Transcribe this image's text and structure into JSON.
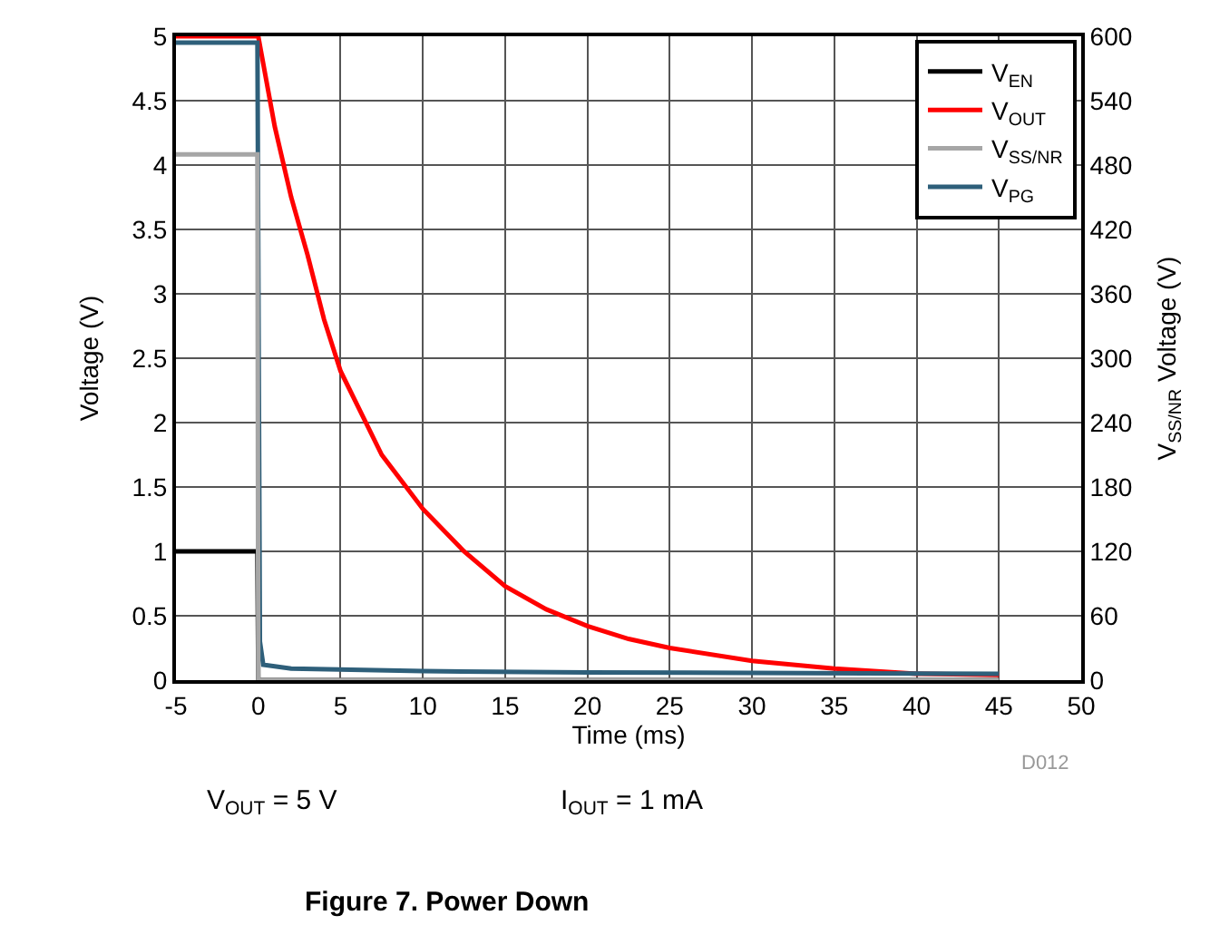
{
  "chart_data": {
    "type": "line",
    "title": "Figure 7. Power Down",
    "xlabel": "Time (ms)",
    "ylabel": "Voltage (V)",
    "y2label": "V$_{SS/NR}$ Voltage (V)",
    "series": [
      {
        "name": "V$_{EN}$",
        "color": "#000000",
        "x": [
          -5,
          -0.05,
          0,
          0.3,
          45
        ],
        "values": [
          1.0,
          1.0,
          0,
          0,
          0
        ]
      },
      {
        "name": "V$_{OUT}$",
        "color": "#ff0000",
        "x": [
          -5,
          0,
          1,
          2,
          3,
          4,
          5,
          7.5,
          10,
          12.5,
          15,
          17.5,
          20,
          22.5,
          25,
          30,
          35,
          40,
          45
        ],
        "values": [
          5.0,
          5.0,
          4.3,
          3.75,
          3.3,
          2.8,
          2.4,
          1.75,
          1.33,
          1.0,
          0.73,
          0.55,
          0.42,
          0.32,
          0.25,
          0.15,
          0.09,
          0.05,
          0.04
        ]
      },
      {
        "name": "V$_{SS/NR}$",
        "color": "#a6a6a6",
        "axis": "y2",
        "x": [
          -5,
          -0.05,
          0,
          0.3,
          45
        ],
        "values": [
          490,
          490,
          0,
          0,
          0
        ]
      },
      {
        "name": "V$_{PG}$",
        "color": "#2e5f7a",
        "x": [
          -5,
          -0.05,
          0.1,
          0.3,
          2,
          10,
          20,
          45
        ],
        "values": [
          4.95,
          4.95,
          0.3,
          0.12,
          0.09,
          0.07,
          0.06,
          0.05
        ]
      }
    ],
    "xlim": [
      -5,
      50
    ],
    "xticks": [
      -5,
      0,
      5,
      10,
      15,
      20,
      25,
      30,
      35,
      40,
      45,
      50
    ],
    "ylim": [
      0,
      5
    ],
    "yticks": [
      0,
      0.5,
      1,
      1.5,
      2,
      2.5,
      3,
      3.5,
      4,
      4.5,
      5
    ],
    "y2lim": [
      0,
      600
    ],
    "y2ticks": [
      0,
      60,
      120,
      180,
      240,
      300,
      360,
      420,
      480,
      540,
      600
    ],
    "grid": true,
    "legend": "top right",
    "marker": "none",
    "line_style": "solid",
    "annotations": [
      "D012",
      "V$_{OUT}$ = 5 V",
      "I$_{OUT}$ = 1 mA"
    ]
  }
}
